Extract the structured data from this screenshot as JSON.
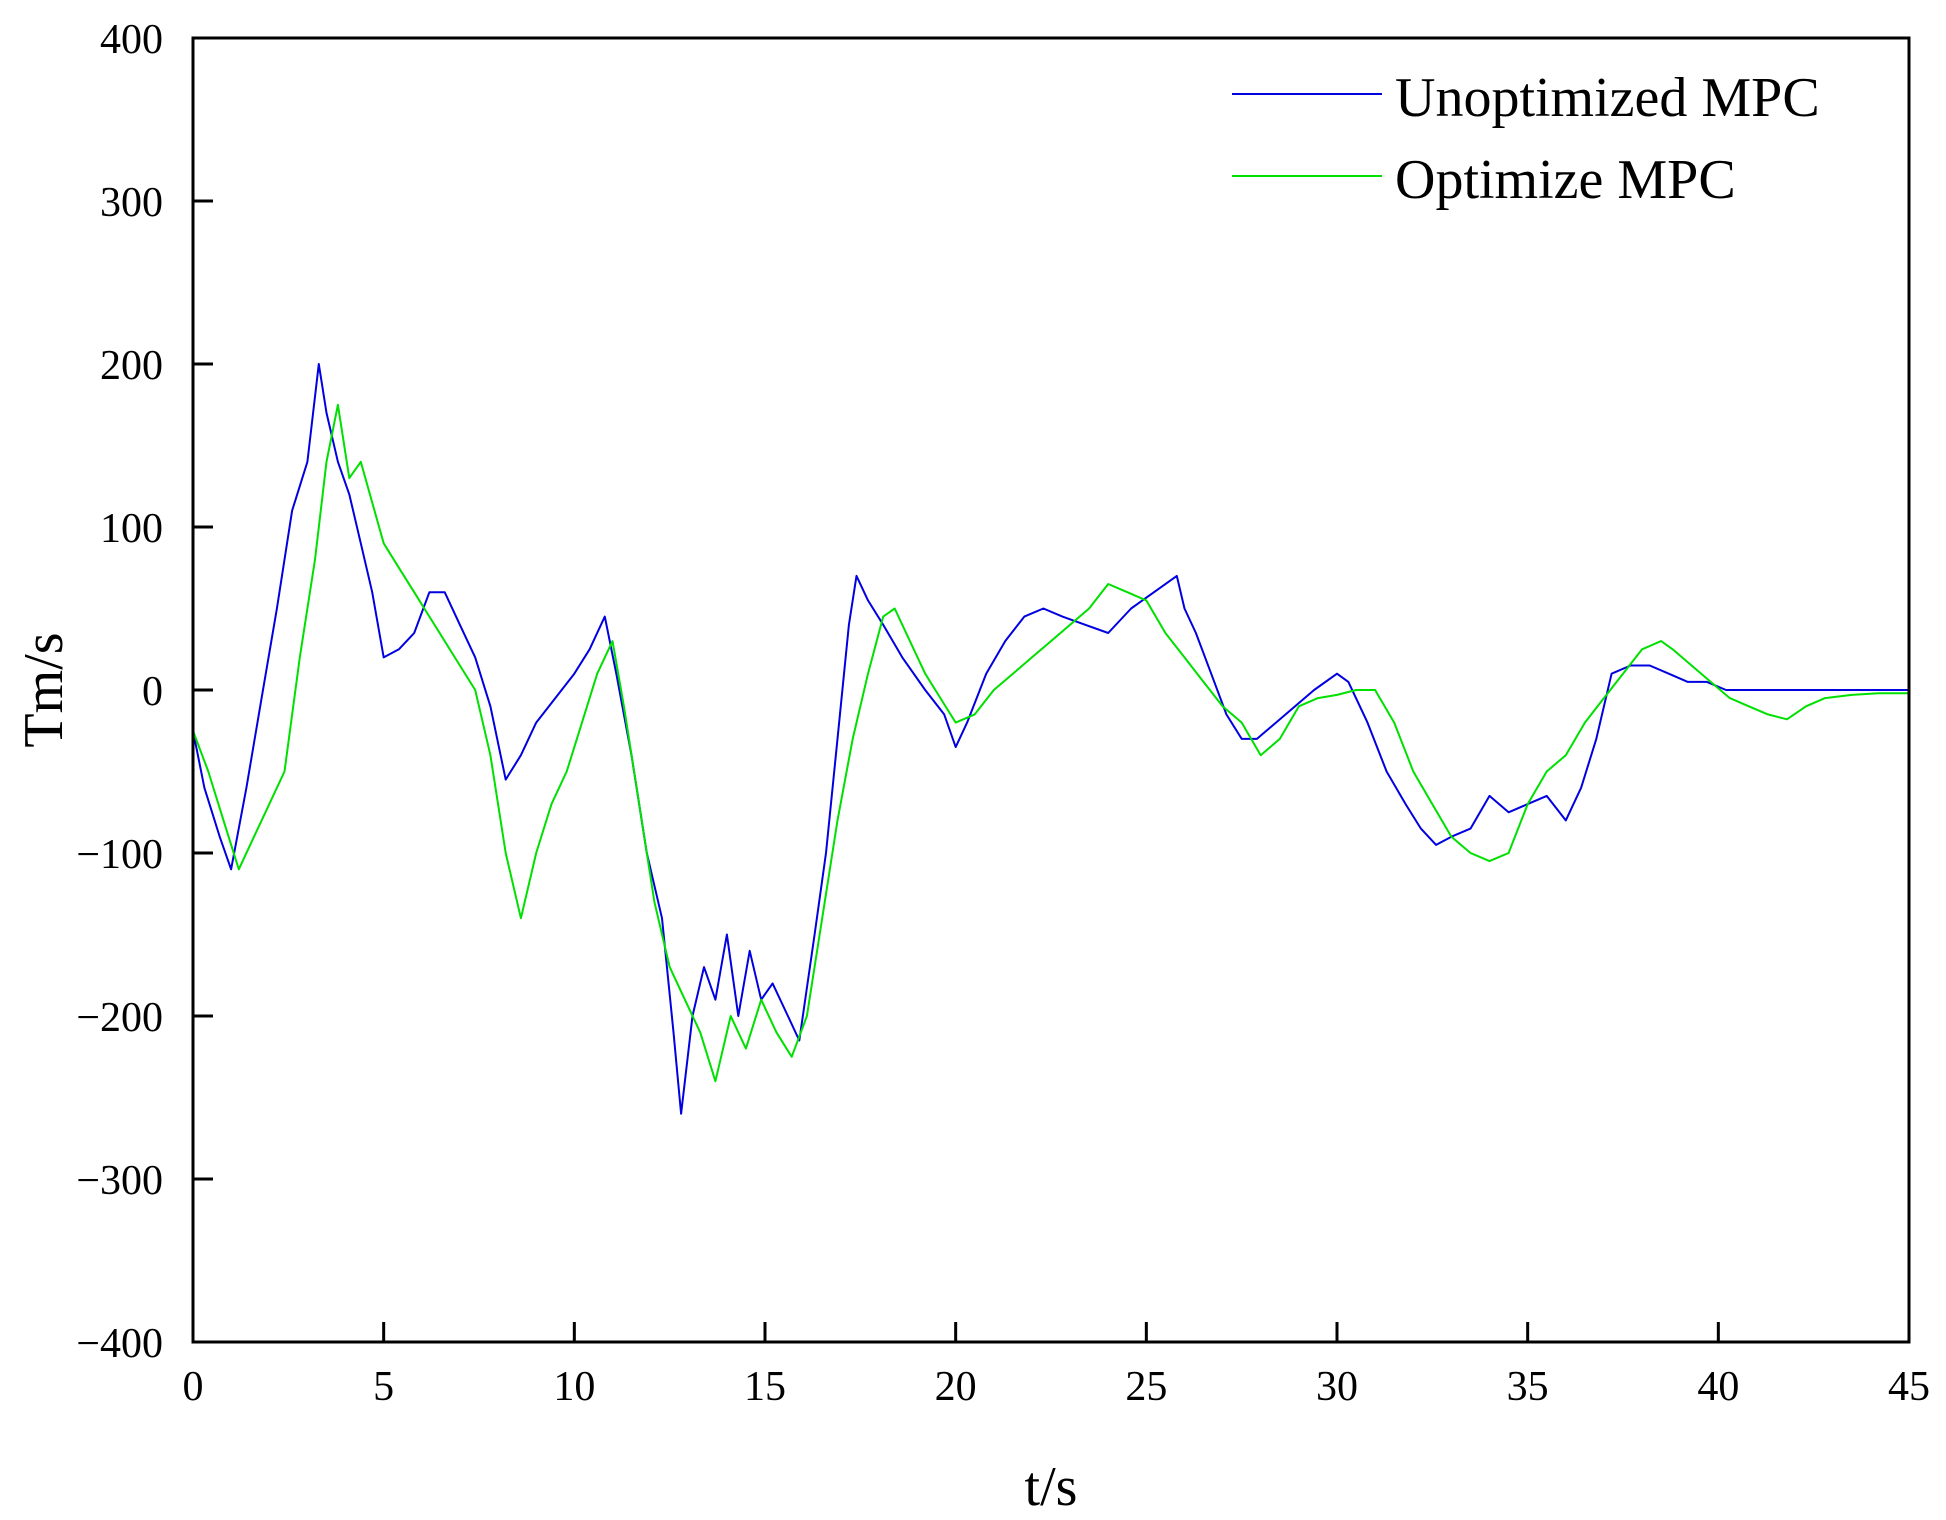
{
  "chart_data": {
    "type": "line",
    "title": "",
    "xlabel": "t/s",
    "ylabel": "Tm/s",
    "xlim": [
      0,
      45
    ],
    "ylim": [
      -400,
      400
    ],
    "xticks": [
      0,
      5,
      10,
      15,
      20,
      25,
      30,
      35,
      40,
      45
    ],
    "yticks": [
      400,
      300,
      200,
      100,
      0,
      -100,
      -200,
      -300,
      -400
    ],
    "xtick_labels": [
      "0",
      "5",
      "10",
      "15",
      "20",
      "25",
      "30",
      "35",
      "40",
      "45"
    ],
    "ytick_labels": [
      "400",
      "300",
      "200",
      "100",
      "0",
      "−100",
      "−200",
      "−300",
      "−400"
    ],
    "grid": false,
    "legend_position": "top-right",
    "series": [
      {
        "name": "Unoptimized MPC",
        "color": "#0000e0",
        "x": [
          0,
          0.3,
          0.7,
          1.0,
          1.4,
          1.8,
          2.2,
          2.6,
          3.0,
          3.3,
          3.5,
          3.8,
          4.1,
          4.4,
          4.7,
          5.0,
          5.4,
          5.8,
          6.2,
          6.6,
          7.0,
          7.4,
          7.8,
          8.2,
          8.6,
          9.0,
          9.5,
          10.0,
          10.4,
          10.8,
          11.1,
          11.5,
          11.9,
          12.3,
          12.6,
          12.8,
          13.1,
          13.4,
          13.7,
          14.0,
          14.3,
          14.6,
          14.9,
          15.2,
          15.6,
          15.9,
          16.3,
          16.6,
          16.9,
          17.2,
          17.4,
          17.7,
          18.1,
          18.6,
          19.2,
          19.7,
          20.0,
          20.3,
          20.8,
          21.3,
          21.8,
          22.3,
          22.8,
          23.4,
          24.0,
          24.6,
          25.2,
          25.8,
          26.0,
          26.3,
          26.7,
          27.1,
          27.5,
          27.9,
          28.4,
          28.9,
          29.4,
          30.0,
          30.3,
          30.8,
          31.3,
          31.8,
          32.2,
          32.6,
          33.0,
          33.5,
          34.0,
          34.5,
          35.0,
          35.5,
          36.0,
          36.4,
          36.8,
          37.2,
          37.7,
          38.2,
          38.7,
          39.2,
          39.7,
          40.2,
          40.8,
          41.5,
          42.5,
          43.5,
          45.0
        ],
        "y": [
          -25,
          -60,
          -90,
          -110,
          -60,
          -5,
          50,
          110,
          140,
          200,
          170,
          140,
          120,
          90,
          60,
          20,
          25,
          35,
          60,
          60,
          40,
          20,
          -10,
          -55,
          -40,
          -20,
          -5,
          10,
          25,
          45,
          10,
          -40,
          -100,
          -140,
          -210,
          -260,
          -200,
          -170,
          -190,
          -150,
          -200,
          -160,
          -190,
          -180,
          -200,
          -215,
          -150,
          -100,
          -30,
          40,
          70,
          55,
          40,
          20,
          0,
          -15,
          -35,
          -20,
          10,
          30,
          45,
          50,
          45,
          40,
          35,
          50,
          60,
          70,
          50,
          35,
          10,
          -15,
          -30,
          -30,
          -20,
          -10,
          0,
          10,
          5,
          -20,
          -50,
          -70,
          -85,
          -95,
          -90,
          -85,
          -65,
          -75,
          -70,
          -65,
          -80,
          -60,
          -30,
          10,
          15,
          15,
          10,
          5,
          5,
          0,
          0,
          0,
          0,
          0,
          0
        ]
      },
      {
        "name": "Optimize MPC",
        "color": "#00e000",
        "x": [
          0,
          0.4,
          0.8,
          1.2,
          1.6,
          2.0,
          2.4,
          2.8,
          3.2,
          3.5,
          3.8,
          4.1,
          4.4,
          4.7,
          5.0,
          5.4,
          5.8,
          6.2,
          6.6,
          7.0,
          7.4,
          7.8,
          8.2,
          8.6,
          9.0,
          9.4,
          9.8,
          10.2,
          10.6,
          11.0,
          11.3,
          11.7,
          12.1,
          12.5,
          12.9,
          13.3,
          13.7,
          14.1,
          14.5,
          14.9,
          15.3,
          15.7,
          16.1,
          16.5,
          16.9,
          17.3,
          17.7,
          18.1,
          18.4,
          18.8,
          19.2,
          19.6,
          20.0,
          20.5,
          21.0,
          21.5,
          22.0,
          22.5,
          23.0,
          23.5,
          24.0,
          24.5,
          25.0,
          25.5,
          26.0,
          26.5,
          27.0,
          27.5,
          28.0,
          28.5,
          29.0,
          29.5,
          30.0,
          30.5,
          31.0,
          31.5,
          32.0,
          32.5,
          33.0,
          33.5,
          34.0,
          34.5,
          35.0,
          35.5,
          36.0,
          36.5,
          37.0,
          37.5,
          38.0,
          38.5,
          38.8,
          39.3,
          39.8,
          40.3,
          40.8,
          41.3,
          41.8,
          42.3,
          42.8,
          43.5,
          44.2,
          45.0
        ],
        "y": [
          -25,
          -50,
          -80,
          -110,
          -90,
          -70,
          -50,
          20,
          80,
          140,
          175,
          130,
          140,
          115,
          90,
          75,
          60,
          45,
          30,
          15,
          0,
          -40,
          -100,
          -140,
          -100,
          -70,
          -50,
          -20,
          10,
          30,
          -10,
          -70,
          -130,
          -170,
          -190,
          -210,
          -240,
          -200,
          -220,
          -190,
          -210,
          -225,
          -200,
          -140,
          -80,
          -30,
          10,
          45,
          50,
          30,
          10,
          -5,
          -20,
          -15,
          0,
          10,
          20,
          30,
          40,
          50,
          65,
          60,
          55,
          35,
          20,
          5,
          -10,
          -20,
          -40,
          -30,
          -10,
          -5,
          -3,
          0,
          0,
          -20,
          -50,
          -70,
          -90,
          -100,
          -105,
          -100,
          -70,
          -50,
          -40,
          -20,
          -5,
          10,
          25,
          30,
          25,
          15,
          5,
          -5,
          -10,
          -15,
          -18,
          -10,
          -5,
          -3,
          -2,
          -2
        ]
      }
    ]
  }
}
